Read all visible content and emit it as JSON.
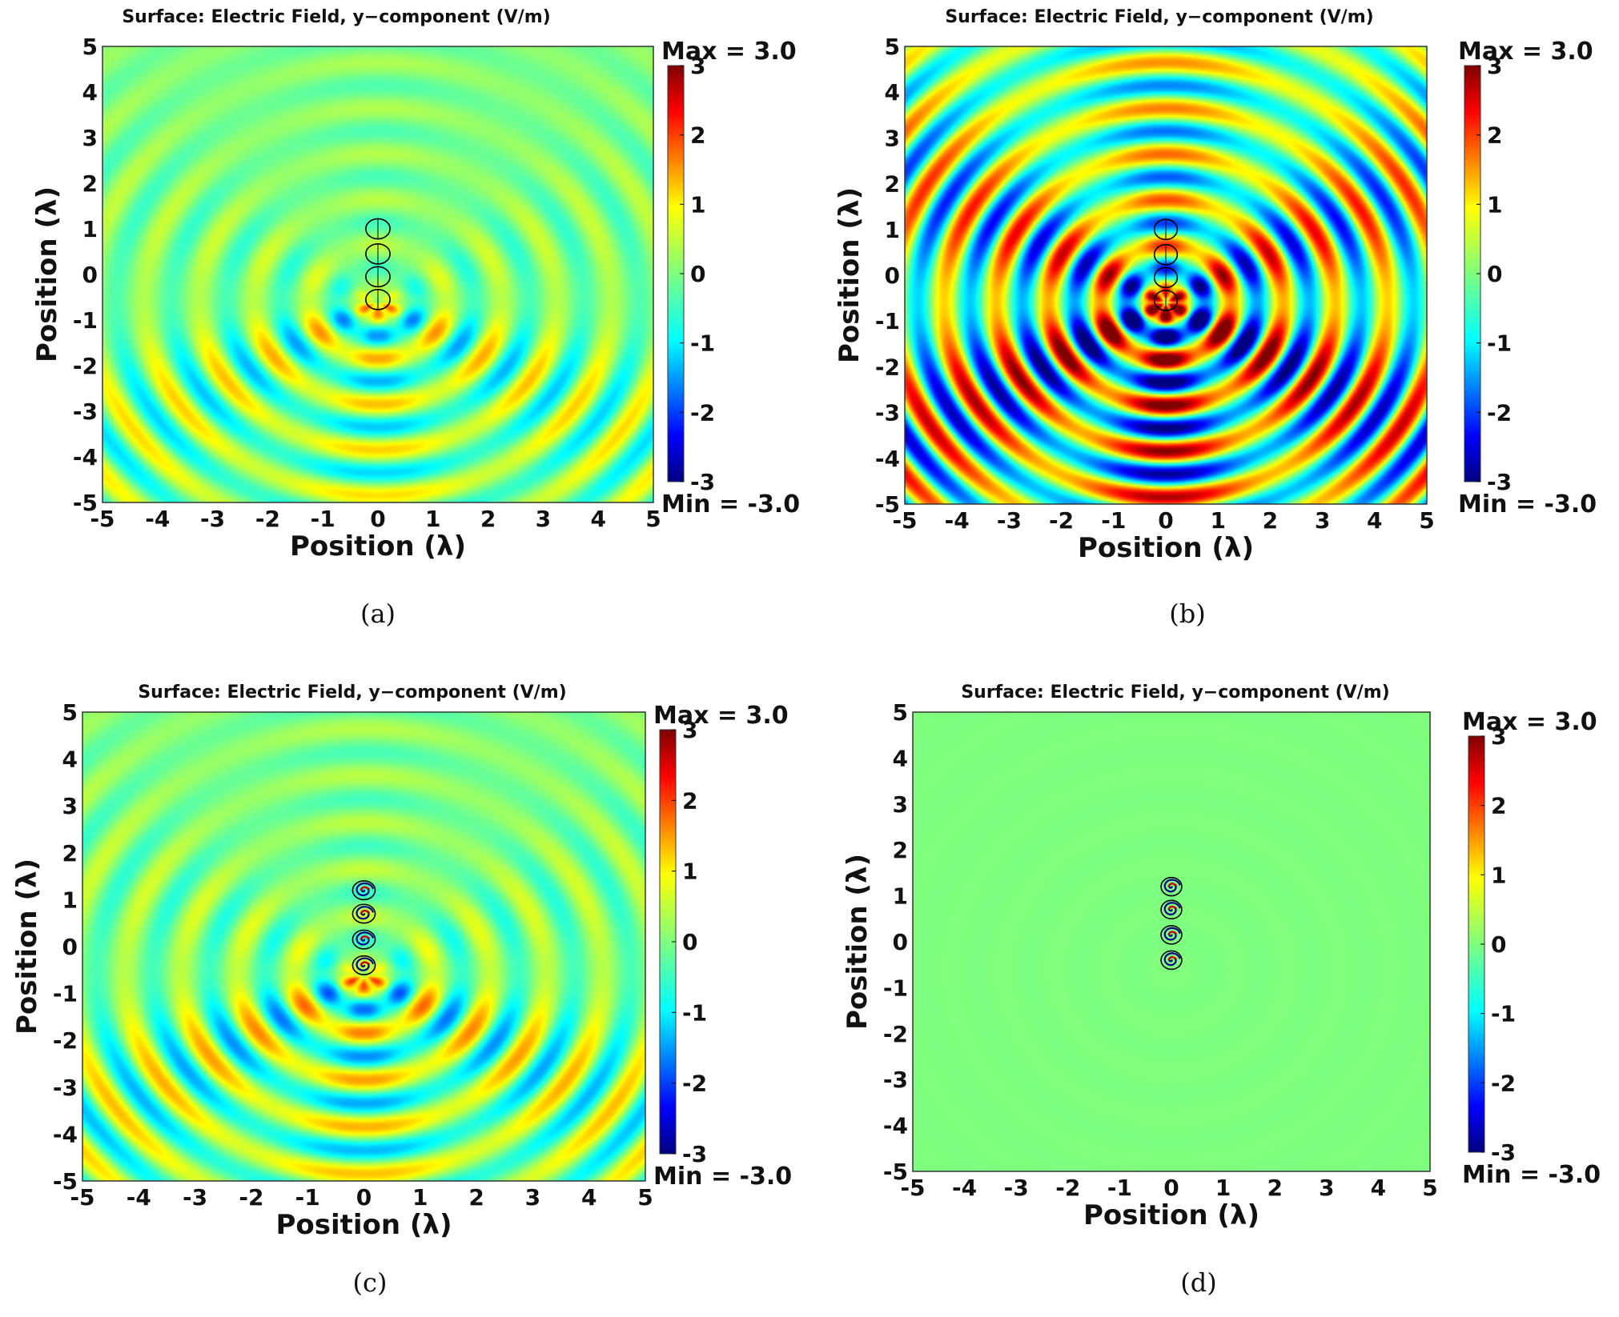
{
  "figure": {
    "panels": [
      {
        "caption": "(a)",
        "title": "Surface: Electric Field, y−component (V/m)",
        "xlabel": "Position (λ)",
        "ylabel": "Position (λ)",
        "max_label": "Max = 3.0",
        "min_label": "Min = -3.0",
        "x_ticks": [
          "-5",
          "-4",
          "-3",
          "-2",
          "-1",
          "0",
          "1",
          "2",
          "3",
          "4",
          "5"
        ],
        "y_ticks": [
          "5",
          "4",
          "3",
          "2",
          "1",
          "0",
          "-1",
          "-2",
          "-3",
          "-4",
          "-5"
        ],
        "colorbar_ticks": [
          "3",
          "2",
          "1",
          "0",
          "-1",
          "-2",
          "-3"
        ]
      },
      {
        "caption": "(b)",
        "title": "Surface: Electric Field, y−component (V/m)",
        "xlabel": "Position (λ)",
        "ylabel": "Position (λ)",
        "max_label": "Max = 3.0",
        "min_label": "Min = -3.0",
        "x_ticks": [
          "-5",
          "-4",
          "-3",
          "-2",
          "-1",
          "0",
          "1",
          "2",
          "3",
          "4",
          "5"
        ],
        "y_ticks": [
          "5",
          "4",
          "3",
          "2",
          "1",
          "0",
          "-1",
          "-2",
          "-3",
          "-4",
          "-5"
        ],
        "colorbar_ticks": [
          "3",
          "2",
          "1",
          "0",
          "-1",
          "-2",
          "-3"
        ]
      },
      {
        "caption": "(c)",
        "title": "Surface: Electric Field, y−component (V/m)",
        "xlabel": "Position (λ)",
        "ylabel": "Position (λ)",
        "max_label": "Max = 3.0",
        "min_label": "Min = -3.0",
        "x_ticks": [
          "-5",
          "-4",
          "-3",
          "-2",
          "-1",
          "0",
          "1",
          "2",
          "3",
          "4",
          "5"
        ],
        "y_ticks": [
          "5",
          "4",
          "3",
          "2",
          "1",
          "0",
          "-1",
          "-2",
          "-3",
          "-4",
          "-5"
        ],
        "colorbar_ticks": [
          "3",
          "2",
          "1",
          "0",
          "-1",
          "-2",
          "-3"
        ]
      },
      {
        "caption": "(d)",
        "title": "Surface: Electric Field, y−component (V/m)",
        "xlabel": "Position (λ)",
        "ylabel": "Position (λ)",
        "max_label": "Max = 3.0",
        "min_label": "Min = -3.0",
        "x_ticks": [
          "-5",
          "-4",
          "-3",
          "-2",
          "-1",
          "0",
          "1",
          "2",
          "3",
          "4",
          "5"
        ],
        "y_ticks": [
          "5",
          "4",
          "3",
          "2",
          "1",
          "0",
          "-1",
          "-2",
          "-3",
          "-4",
          "-5"
        ],
        "colorbar_ticks": [
          "3",
          "2",
          "1",
          "0",
          "-1",
          "-2",
          "-3"
        ]
      }
    ]
  },
  "chart_data": [
    {
      "type": "heatmap",
      "panel": "a",
      "title": "Surface: Electric Field, y−component (V/m)",
      "xlabel": "Position (λ)",
      "ylabel": "Position (λ)",
      "xlim": [
        -5,
        5
      ],
      "ylim": [
        -5,
        5
      ],
      "clim": [
        -3,
        3
      ],
      "colormap": "jet",
      "field_amplitude": 1.1,
      "pattern": "downward-focused radiation, moderate amplitude",
      "scatterers": {
        "count": 4,
        "x": 0,
        "y_centers": [
          1.0,
          0.45,
          -0.05,
          -0.55
        ],
        "radius": 0.22,
        "style": "plain"
      }
    },
    {
      "type": "heatmap",
      "panel": "b",
      "title": "Surface: Electric Field, y−component (V/m)",
      "xlabel": "Position (λ)",
      "ylabel": "Position (λ)",
      "xlim": [
        -5,
        5
      ],
      "ylim": [
        -5,
        5
      ],
      "clim": [
        -3,
        3
      ],
      "colormap": "jet",
      "field_amplitude": 2.6,
      "pattern": "strong broad radiation in all directions, stronger downward",
      "scatterers": {
        "count": 4,
        "x": 0,
        "y_centers": [
          1.0,
          0.45,
          -0.05,
          -0.55
        ],
        "radius": 0.22,
        "style": "plain"
      }
    },
    {
      "type": "heatmap",
      "panel": "c",
      "title": "Surface: Electric Field, y−component (V/m)",
      "xlabel": "Position (λ)",
      "ylabel": "Position (λ)",
      "xlim": [
        -5,
        5
      ],
      "ylim": [
        -5,
        5
      ],
      "clim": [
        -3,
        3
      ],
      "colormap": "jet",
      "field_amplitude": 1.3,
      "pattern": "downward-focused radiation, moderate amplitude",
      "scatterers": {
        "count": 4,
        "x": 0,
        "y_centers": [
          1.2,
          0.7,
          0.15,
          -0.4
        ],
        "radius": 0.2,
        "style": "spiral"
      }
    },
    {
      "type": "heatmap",
      "panel": "d",
      "title": "Surface: Electric Field, y−component (V/m)",
      "xlabel": "Position (λ)",
      "ylabel": "Position (λ)",
      "xlim": [
        -5,
        5
      ],
      "ylim": [
        -5,
        5
      ],
      "clim": [
        -3,
        3
      ],
      "colormap": "jet",
      "field_amplitude": 0.03,
      "pattern": "field confined to scatterers, near-zero background",
      "scatterers": {
        "count": 4,
        "x": 0,
        "y_centers": [
          1.2,
          0.7,
          0.15,
          -0.4
        ],
        "radius": 0.2,
        "style": "spiral"
      }
    }
  ]
}
